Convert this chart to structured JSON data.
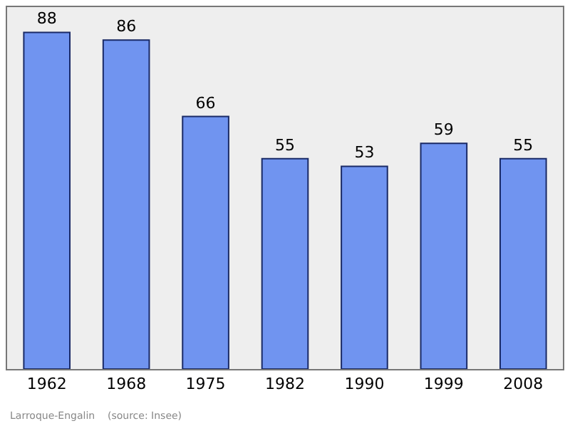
{
  "chart_data": {
    "type": "bar",
    "categories": [
      "1962",
      "1968",
      "1975",
      "1982",
      "1990",
      "1999",
      "2008"
    ],
    "values": [
      88,
      86,
      66,
      55,
      53,
      59,
      55
    ],
    "color": "#7094f0",
    "data_labels": true,
    "grid": false,
    "legend": false,
    "annotations": [
      "Larroque-Engalin    (source: Insee)"
    ]
  }
}
